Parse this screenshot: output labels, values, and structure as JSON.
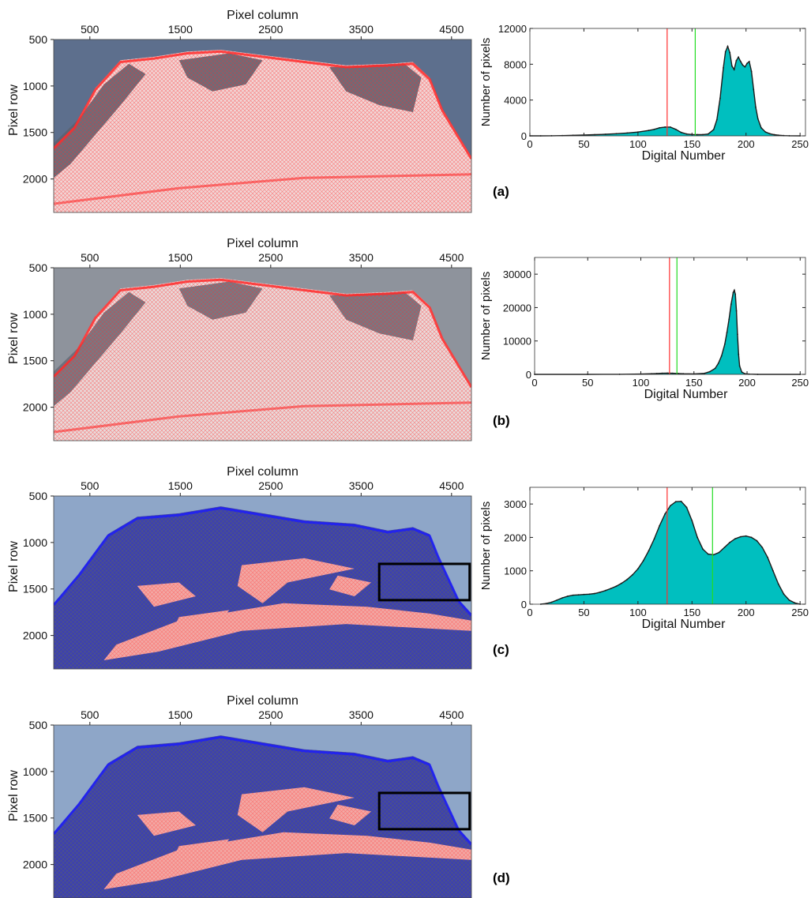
{
  "figure": {
    "panel_labels": [
      "(a)",
      "(b)",
      "(c)",
      "(d)"
    ]
  },
  "image_panels": [
    {
      "id": "a",
      "xlabel": "Pixel column",
      "ylabel": "Pixel row",
      "x_ticks": [
        500,
        1500,
        2500,
        3500,
        4500
      ],
      "y_ticks": [
        500,
        1000,
        1500,
        2000
      ],
      "xlim": [
        100,
        4720
      ],
      "ylim": [
        500,
        2360
      ],
      "sky_color": "#5d6f8d",
      "rock_color": "#5b6270",
      "snow_color": "#f1d6d6",
      "overlay_red": "#ff2a2a",
      "overlay_blue": "#1a1aff",
      "dominant_overlay": "red",
      "highlight_box": null
    },
    {
      "id": "b",
      "xlabel": "Pixel column",
      "ylabel": "Pixel row",
      "x_ticks": [
        500,
        1500,
        2500,
        3500,
        4500
      ],
      "y_ticks": [
        500,
        1000,
        1500,
        2000
      ],
      "xlim": [
        100,
        4720
      ],
      "ylim": [
        500,
        2360
      ],
      "sky_color": "#8e939c",
      "rock_color": "#696e7a",
      "snow_color": "#e9dbdb",
      "overlay_red": "#ff2a2a",
      "overlay_blue": "#1a1aff",
      "dominant_overlay": "red",
      "highlight_box": null
    },
    {
      "id": "c",
      "xlabel": "Pixel column",
      "ylabel": "Pixel row",
      "x_ticks": [
        500,
        1500,
        2500,
        3500,
        4500
      ],
      "y_ticks": [
        500,
        1000,
        1500,
        2000
      ],
      "xlim": [
        100,
        4720
      ],
      "ylim": [
        500,
        2360
      ],
      "sky_color": "#8ea6c8",
      "rock_color": "#4a4f8f",
      "snow_color": "#f2a8a4",
      "overlay_red": "#ff2a2a",
      "overlay_blue": "#1a1aff",
      "dominant_overlay": "blue",
      "highlight_box": {
        "x": [
          3700,
          4700
        ],
        "y": [
          1230,
          1620
        ]
      }
    },
    {
      "id": "d",
      "xlabel": "Pixel column",
      "ylabel": "Pixel row",
      "x_ticks": [
        500,
        1500,
        2500,
        3500,
        4500
      ],
      "y_ticks": [
        500,
        1000,
        1500,
        2000
      ],
      "xlim": [
        100,
        4720
      ],
      "ylim": [
        500,
        2360
      ],
      "sky_color": "#8ea6c8",
      "rock_color": "#4a4f8f",
      "snow_color": "#f2a8a4",
      "overlay_red": "#ff2a2a",
      "overlay_blue": "#1a1aff",
      "dominant_overlay": "blue",
      "highlight_box": {
        "x": [
          3700,
          4700
        ],
        "y": [
          1230,
          1620
        ]
      }
    }
  ],
  "chart_data": [
    {
      "type": "area",
      "id": "a",
      "xlabel": "Digital Number",
      "ylabel": "Number of pixels",
      "xlim": [
        0,
        255
      ],
      "ylim": [
        0,
        12000
      ],
      "x_ticks": [
        0,
        50,
        100,
        150,
        200,
        250
      ],
      "y_ticks": [
        0,
        4000,
        8000,
        12000
      ],
      "fill_color": "#00bfbf",
      "line_color": "#1a1a1a",
      "red_threshold": 127,
      "green_threshold": 153,
      "x": [
        0,
        10,
        20,
        30,
        40,
        50,
        60,
        70,
        80,
        90,
        100,
        110,
        115,
        120,
        125,
        130,
        135,
        140,
        145,
        150,
        155,
        160,
        165,
        170,
        173,
        176,
        179,
        181,
        183,
        185,
        187,
        189,
        191,
        193,
        195,
        197,
        199,
        201,
        203,
        205,
        207,
        209,
        211,
        214,
        218,
        222,
        226,
        230,
        235,
        240,
        250
      ],
      "values": [
        0,
        0,
        10,
        30,
        60,
        90,
        130,
        180,
        240,
        320,
        420,
        600,
        720,
        900,
        980,
        980,
        720,
        380,
        200,
        150,
        130,
        140,
        200,
        700,
        1800,
        4200,
        7600,
        9400,
        10000,
        9300,
        7800,
        7400,
        8400,
        8800,
        8300,
        7900,
        7700,
        8100,
        8300,
        7200,
        5200,
        3200,
        1900,
        900,
        420,
        240,
        130,
        70,
        30,
        10,
        0
      ]
    },
    {
      "type": "area",
      "id": "b",
      "xlabel": "Digital Number",
      "ylabel": "Number of pixels",
      "xlim": [
        0,
        255
      ],
      "ylim": [
        0,
        35000
      ],
      "x_ticks": [
        0,
        50,
        100,
        150,
        200,
        250
      ],
      "y_ticks": [
        0,
        10000,
        20000,
        30000
      ],
      "fill_color": "#00bfbf",
      "line_color": "#1a1a1a",
      "red_threshold": 127,
      "green_threshold": 134,
      "x": [
        0,
        50,
        80,
        100,
        110,
        115,
        120,
        125,
        130,
        135,
        140,
        150,
        160,
        165,
        170,
        173,
        176,
        179,
        181,
        183,
        185,
        187,
        188,
        189,
        190,
        191,
        192,
        193,
        195,
        198,
        202,
        210,
        250
      ],
      "values": [
        0,
        0,
        30,
        90,
        180,
        260,
        330,
        360,
        330,
        250,
        180,
        150,
        300,
        800,
        1800,
        3300,
        5500,
        9000,
        12500,
        16500,
        21000,
        24500,
        25200,
        24000,
        19000,
        12000,
        6000,
        2500,
        700,
        200,
        60,
        10,
        0
      ]
    },
    {
      "type": "area",
      "id": "c",
      "xlabel": "Digital Number",
      "ylabel": "Number of pixels",
      "xlim": [
        0,
        255
      ],
      "ylim": [
        0,
        3500
      ],
      "x_ticks": [
        0,
        50,
        100,
        150,
        200,
        250
      ],
      "y_ticks": [
        0,
        1000,
        2000,
        3000
      ],
      "fill_color": "#00bfbf",
      "line_color": "#1a1a1a",
      "red_threshold": 127,
      "green_threshold": 169,
      "x": [
        10,
        15,
        20,
        25,
        30,
        35,
        40,
        45,
        50,
        55,
        60,
        65,
        70,
        75,
        80,
        85,
        90,
        95,
        100,
        105,
        110,
        115,
        120,
        125,
        130,
        135,
        140,
        145,
        150,
        155,
        160,
        165,
        170,
        175,
        180,
        185,
        190,
        195,
        200,
        205,
        210,
        215,
        220,
        225,
        230,
        235,
        240,
        245,
        250
      ],
      "values": [
        0,
        20,
        60,
        120,
        190,
        240,
        270,
        280,
        290,
        300,
        320,
        360,
        410,
        470,
        540,
        630,
        740,
        880,
        1060,
        1300,
        1600,
        1950,
        2350,
        2700,
        2950,
        3070,
        3080,
        2900,
        2500,
        2000,
        1650,
        1500,
        1480,
        1550,
        1700,
        1850,
        1960,
        2020,
        2040,
        2000,
        1900,
        1700,
        1400,
        1000,
        600,
        300,
        120,
        40,
        0
      ]
    }
  ]
}
